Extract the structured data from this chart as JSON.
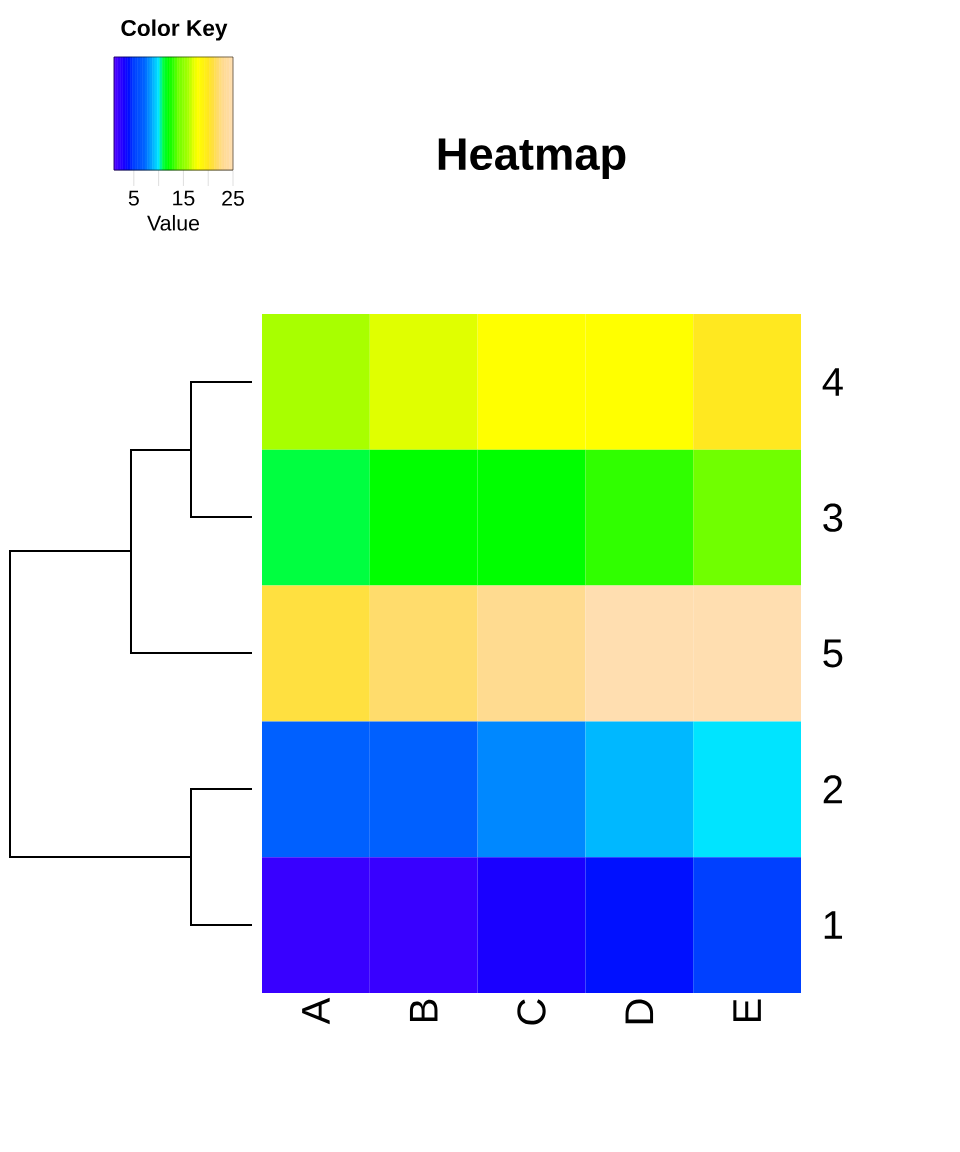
{
  "chart_data": {
    "type": "heatmap",
    "title": "Heatmap",
    "categories": [
      "A",
      "B",
      "C",
      "D",
      "E"
    ],
    "y_categories": [
      "4",
      "3",
      "5",
      "2",
      "1"
    ],
    "cells": [
      [
        16,
        17,
        18,
        18,
        20
      ],
      [
        11,
        12,
        12,
        13,
        14
      ],
      [
        21,
        22,
        23,
        25,
        25
      ],
      [
        7,
        7,
        8,
        9,
        10
      ],
      [
        2,
        2,
        3,
        4,
        5
      ]
    ],
    "clabel": "Value",
    "clim": [
      1,
      25
    ],
    "cticks": [
      5,
      {
        "value": 10,
        "label": null
      },
      15,
      {
        "value": 20,
        "label": null
      },
      25
    ],
    "annotations": [
      "Color Key"
    ]
  }
}
